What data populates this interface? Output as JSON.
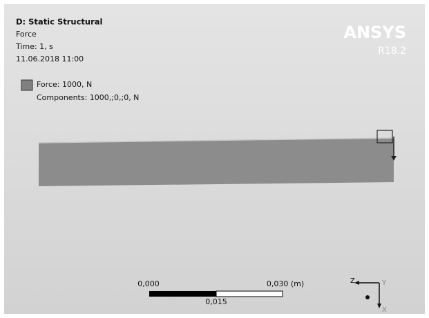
{
  "header": {
    "title": "D: Static Structural",
    "lines": [
      "Force",
      "Time: 1, s",
      "11.06.2018 11:00"
    ]
  },
  "legend": {
    "label": "Force: 1000, N",
    "components": "Components: 1000,;0,;0, N"
  },
  "logo": {
    "brand": "ANSYS",
    "version": "R18.2"
  },
  "scale_bar": {
    "start": "0,000",
    "end": "0,030 (m)",
    "middle": "0,015"
  },
  "triad": {
    "z": "Z",
    "y": "Y",
    "x": "X"
  }
}
